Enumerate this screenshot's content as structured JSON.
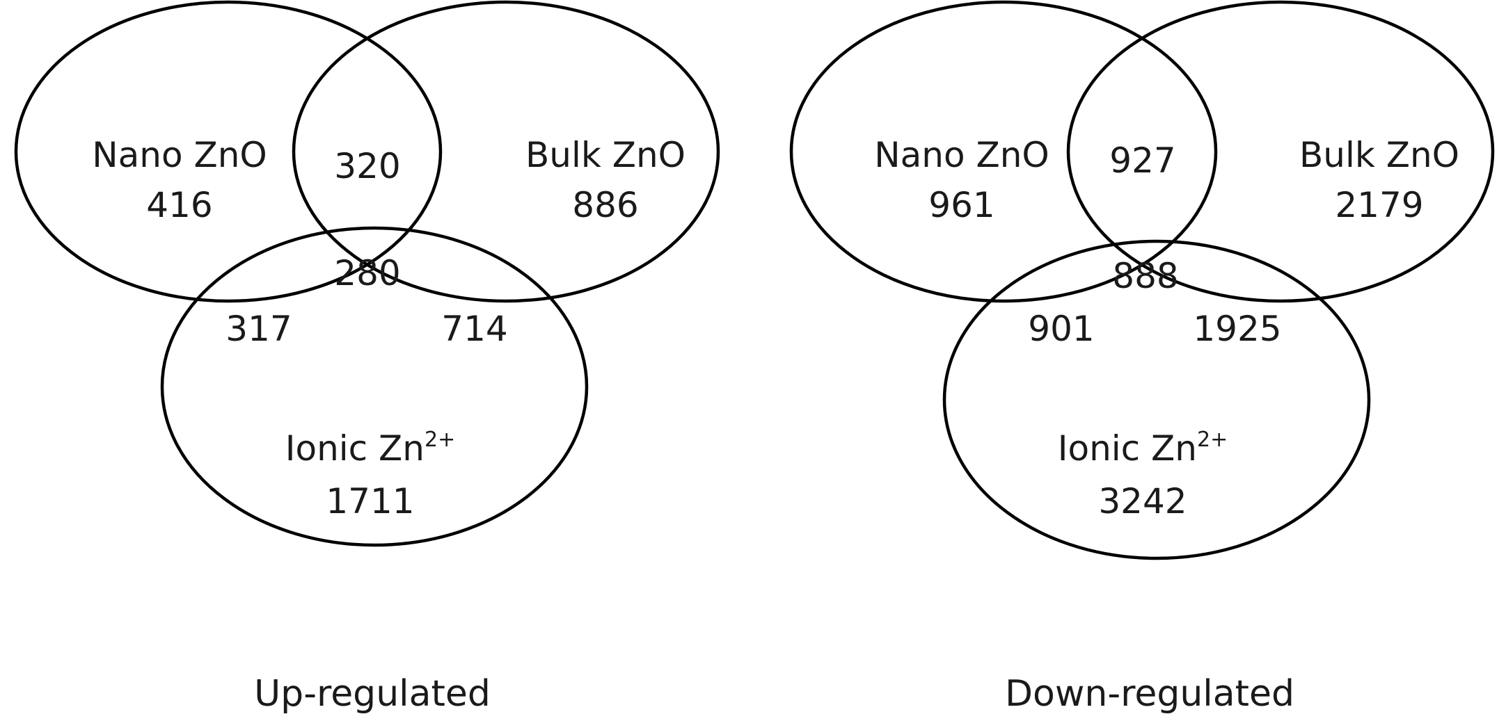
{
  "diagrams": [
    {
      "caption": "Up-regulated",
      "sets": {
        "nano": {
          "name": "Nano ZnO",
          "count": "416"
        },
        "bulk": {
          "name": "Bulk ZnO",
          "count": "886"
        },
        "ionic": {
          "name_base": "Ionic Zn",
          "name_sup": "2+",
          "count": "1711"
        }
      },
      "overlaps": {
        "nano_bulk": "320",
        "nano_bulk_ionic": "280",
        "nano_ionic": "317",
        "bulk_ionic": "714"
      }
    },
    {
      "caption": "Down-regulated",
      "sets": {
        "nano": {
          "name": "Nano ZnO",
          "count": "961"
        },
        "bulk": {
          "name": "Bulk ZnO",
          "count": "2179"
        },
        "ionic": {
          "name_base": "Ionic Zn",
          "name_sup": "2+",
          "count": "3242"
        }
      },
      "overlaps": {
        "nano_bulk": "927",
        "nano_bulk_ionic": "888",
        "nano_ionic": "901",
        "bulk_ionic": "1925"
      }
    }
  ]
}
